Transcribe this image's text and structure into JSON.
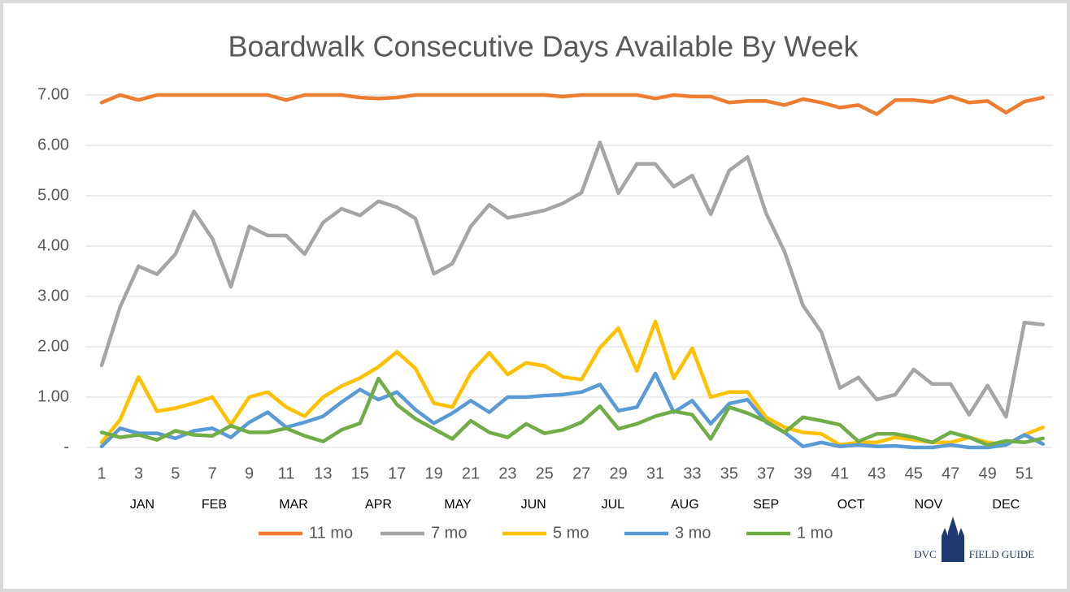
{
  "chart_data": {
    "type": "line",
    "title": "Boardwalk Consecutive Days Available By Week",
    "categories": [
      "1",
      null,
      "3",
      null,
      "5",
      null,
      "7",
      null,
      "9",
      null,
      "11",
      null,
      "13",
      null,
      "15",
      null,
      "17",
      null,
      "19",
      null,
      "21",
      null,
      "23",
      null,
      "25",
      null,
      "27",
      null,
      "29",
      null,
      "31",
      null,
      "33",
      null,
      "35",
      null,
      "37",
      null,
      "39",
      null,
      "41",
      null,
      "43",
      null,
      "45",
      null,
      "47",
      null,
      "49",
      null,
      "51",
      null
    ],
    "months": [
      {
        "label": "JAN",
        "week": 3.2
      },
      {
        "label": "FEB",
        "week": 7.1
      },
      {
        "label": "MAR",
        "week": 11.4
      },
      {
        "label": "APR",
        "week": 16
      },
      {
        "label": "MAY",
        "week": 20.3
      },
      {
        "label": "JUN",
        "week": 24.4
      },
      {
        "label": "JUL",
        "week": 28.7
      },
      {
        "label": "AUG",
        "week": 32.6
      },
      {
        "label": "SEP",
        "week": 37
      },
      {
        "label": "OCT",
        "week": 41.6
      },
      {
        "label": "NOV",
        "week": 45.8
      },
      {
        "label": "DEC",
        "week": 50
      }
    ],
    "series": [
      {
        "name": "11 mo",
        "color": "#ED7D31",
        "values": [
          6.85,
          7.0,
          6.9,
          7,
          7,
          7,
          7,
          7,
          7,
          7,
          6.9,
          7,
          7,
          7,
          6.95,
          6.93,
          6.95,
          7,
          7,
          7,
          7,
          7,
          7,
          7,
          7,
          6.97,
          7,
          7,
          7,
          7,
          6.93,
          7,
          6.97,
          6.97,
          6.85,
          6.88,
          6.88,
          6.8,
          6.92,
          6.85,
          6.75,
          6.8,
          6.62,
          6.9,
          6.9,
          6.86,
          6.97,
          6.85,
          6.88,
          6.65,
          6.87,
          6.95
        ]
      },
      {
        "name": "7 mo",
        "color": "#A5A5A5",
        "values": [
          1.63,
          2.79,
          3.6,
          3.44,
          3.84,
          4.69,
          4.15,
          3.19,
          4.39,
          4.21,
          4.21,
          3.84,
          4.47,
          4.74,
          4.61,
          4.89,
          4.77,
          4.55,
          3.45,
          3.65,
          4.39,
          4.82,
          4.56,
          4.63,
          4.71,
          4.85,
          5.06,
          6.06,
          5.05,
          5.63,
          5.63,
          5.18,
          5.4,
          4.63,
          5.5,
          5.77,
          4.65,
          3.89,
          2.82,
          2.29,
          1.18,
          1.39,
          0.95,
          1.05,
          1.55,
          1.26,
          1.26,
          0.65,
          1.23,
          0.61,
          2.48,
          2.44
        ]
      },
      {
        "name": "5 mo",
        "color": "#FFC000",
        "values": [
          0.1,
          0.55,
          1.4,
          0.72,
          0.78,
          0.88,
          1.0,
          0.45,
          1.0,
          1.1,
          0.8,
          0.62,
          1.0,
          1.22,
          1.38,
          1.6,
          1.9,
          1.57,
          0.88,
          0.8,
          1.48,
          1.88,
          1.45,
          1.68,
          1.62,
          1.4,
          1.35,
          1.98,
          2.37,
          1.52,
          2.5,
          1.37,
          1.97,
          1.0,
          1.1,
          1.1,
          0.6,
          0.4,
          0.3,
          0.27,
          0.05,
          0.1,
          0.1,
          0.2,
          0.15,
          0.1,
          0.1,
          0.2,
          0.1,
          0.05,
          0.25,
          0.4
        ]
      },
      {
        "name": "3 mo",
        "color": "#5B9BD5",
        "values": [
          0.02,
          0.38,
          0.28,
          0.28,
          0.18,
          0.33,
          0.38,
          0.2,
          0.5,
          0.7,
          0.4,
          0.5,
          0.62,
          0.9,
          1.15,
          0.95,
          1.1,
          0.75,
          0.48,
          0.68,
          0.93,
          0.7,
          1.0,
          1.0,
          1.03,
          1.05,
          1.1,
          1.25,
          0.73,
          0.8,
          1.47,
          0.7,
          0.93,
          0.47,
          0.87,
          0.95,
          0.5,
          0.3,
          0.02,
          0.1,
          0.02,
          0.05,
          0.02,
          0.03,
          0,
          0,
          0.05,
          0,
          0,
          0.05,
          0.25,
          0.07
        ]
      },
      {
        "name": "1 mo",
        "color": "#70AD47",
        "values": [
          0.3,
          0.2,
          0.25,
          0.15,
          0.33,
          0.25,
          0.23,
          0.43,
          0.3,
          0.3,
          0.38,
          0.23,
          0.12,
          0.35,
          0.48,
          1.37,
          0.85,
          0.57,
          0.37,
          0.17,
          0.53,
          0.3,
          0.2,
          0.47,
          0.28,
          0.35,
          0.5,
          0.82,
          0.37,
          0.47,
          0.62,
          0.72,
          0.65,
          0.17,
          0.8,
          0.68,
          0.52,
          0.3,
          0.6,
          0.53,
          0.45,
          0.12,
          0.27,
          0.27,
          0.2,
          0.1,
          0.3,
          0.2,
          0.05,
          0.13,
          0.1,
          0.18
        ]
      }
    ],
    "ylim": [
      0,
      7
    ],
    "yticks": [
      {
        "value": 0,
        "label": "-"
      },
      {
        "value": 1,
        "label": "1.00"
      },
      {
        "value": 2,
        "label": "2.00"
      },
      {
        "value": 3,
        "label": "3.00"
      },
      {
        "value": 4,
        "label": "4.00"
      },
      {
        "value": 5,
        "label": "5.00"
      },
      {
        "value": 6,
        "label": "6.00"
      },
      {
        "value": 7,
        "label": "7.00"
      }
    ],
    "grid": true,
    "legend": "bottom"
  },
  "logo": [
    "DVC",
    "FIELD GUIDE"
  ]
}
